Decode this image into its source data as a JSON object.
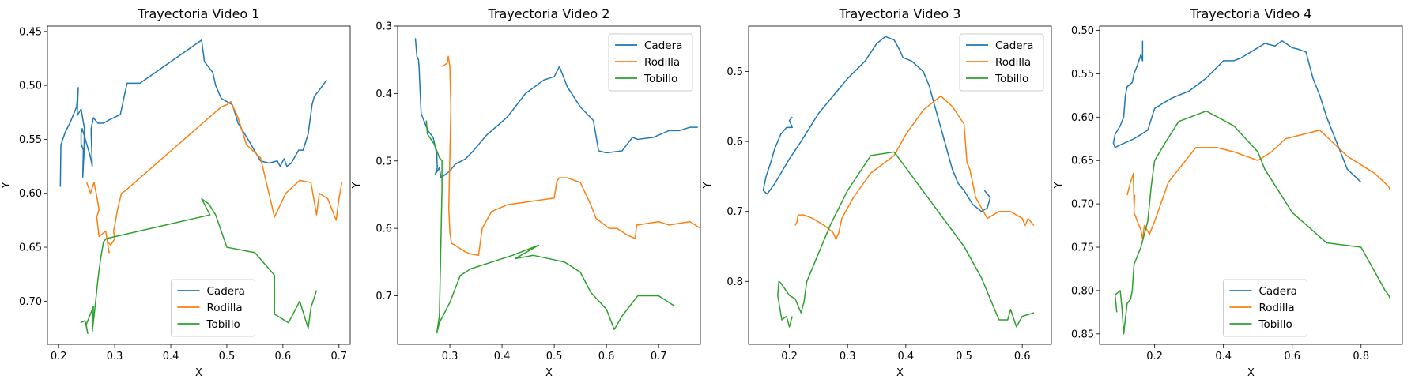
{
  "figure": {
    "background": "#ffffff",
    "colors": {
      "Cadera": "#1f77b4",
      "Rodilla": "#ff7f0e",
      "Tobillo": "#2ca02c"
    }
  },
  "chart_data": [
    {
      "type": "line",
      "title": "Trayectoria Video 1",
      "xlabel": "X",
      "ylabel": "Y",
      "xlim": [
        0.18,
        0.72
      ],
      "ylim": [
        0.74,
        0.445
      ],
      "y_inverted": true,
      "xticks": [
        0.2,
        0.3,
        0.4,
        0.5,
        0.6,
        0.7
      ],
      "yticks": [
        0.45,
        0.5,
        0.55,
        0.6,
        0.65,
        0.7
      ],
      "grid": false,
      "legend": "lower-center",
      "series": [
        {
          "name": "Cadera",
          "color": "#1f77b4",
          "x": [
            0.203,
            0.204,
            0.212,
            0.22,
            0.228,
            0.232,
            0.235,
            0.233,
            0.24,
            0.246,
            0.245,
            0.243,
            0.244,
            0.24,
            0.24,
            0.242,
            0.256,
            0.26,
            0.258,
            0.258,
            0.262,
            0.27,
            0.28,
            0.29,
            0.31,
            0.322,
            0.345,
            0.455,
            0.46,
            0.475,
            0.48,
            0.49,
            0.5,
            0.51,
            0.52,
            0.54,
            0.56,
            0.575,
            0.59,
            0.595,
            0.602,
            0.607,
            0.615,
            0.628,
            0.636,
            0.645,
            0.652,
            0.656,
            0.664,
            0.678
          ],
          "y": [
            0.594,
            0.555,
            0.543,
            0.535,
            0.525,
            0.52,
            0.502,
            0.528,
            0.522,
            0.54,
            0.565,
            0.585,
            0.56,
            0.554,
            0.545,
            0.54,
            0.565,
            0.575,
            0.545,
            0.54,
            0.53,
            0.535,
            0.535,
            0.532,
            0.527,
            0.498,
            0.498,
            0.458,
            0.478,
            0.488,
            0.5,
            0.512,
            0.515,
            0.518,
            0.535,
            0.552,
            0.57,
            0.572,
            0.57,
            0.575,
            0.568,
            0.575,
            0.572,
            0.56,
            0.56,
            0.545,
            0.518,
            0.51,
            0.505,
            0.495
          ]
        },
        {
          "name": "Rodilla",
          "color": "#ff7f0e",
          "x": [
            0.25,
            0.257,
            0.263,
            0.267,
            0.272,
            0.268,
            0.272,
            0.284,
            0.29,
            0.287,
            0.293,
            0.3,
            0.298,
            0.3,
            0.305,
            0.312,
            0.318,
            0.49,
            0.5,
            0.507,
            0.52,
            0.535,
            0.56,
            0.585,
            0.605,
            0.63,
            0.65,
            0.66,
            0.665,
            0.68,
            0.695,
            0.7,
            0.705
          ],
          "y": [
            0.59,
            0.6,
            0.59,
            0.6,
            0.615,
            0.622,
            0.64,
            0.635,
            0.655,
            0.645,
            0.648,
            0.642,
            0.635,
            0.63,
            0.615,
            0.6,
            0.598,
            0.52,
            0.518,
            0.515,
            0.53,
            0.555,
            0.567,
            0.622,
            0.6,
            0.588,
            0.59,
            0.62,
            0.6,
            0.605,
            0.625,
            0.605,
            0.59
          ]
        },
        {
          "name": "Tobillo",
          "color": "#2ca02c",
          "x": [
            0.239,
            0.247,
            0.252,
            0.249,
            0.262,
            0.26,
            0.265,
            0.27,
            0.275,
            0.28,
            0.285,
            0.47,
            0.455,
            0.468,
            0.48,
            0.5,
            0.55,
            0.585,
            0.585,
            0.61,
            0.63,
            0.645,
            0.65,
            0.66
          ],
          "y": [
            0.72,
            0.718,
            0.73,
            0.722,
            0.705,
            0.728,
            0.705,
            0.68,
            0.66,
            0.645,
            0.642,
            0.62,
            0.605,
            0.61,
            0.62,
            0.65,
            0.655,
            0.676,
            0.712,
            0.72,
            0.7,
            0.725,
            0.706,
            0.69
          ]
        }
      ]
    },
    {
      "type": "line",
      "title": "Trayectoria Video 2",
      "xlabel": "X",
      "ylabel": "Y",
      "xlim": [
        0.2,
        0.78
      ],
      "ylim": [
        0.772,
        0.3
      ],
      "y_inverted": true,
      "xticks": [
        0.3,
        0.4,
        0.5,
        0.6,
        0.7
      ],
      "yticks": [
        0.3,
        0.4,
        0.5,
        0.6,
        0.7
      ],
      "grid": false,
      "legend": "top-right",
      "series": [
        {
          "name": "Cadera",
          "color": "#1f77b4",
          "x": [
            0.234,
            0.237,
            0.24,
            0.241,
            0.245,
            0.258,
            0.268,
            0.275,
            0.276,
            0.272,
            0.28,
            0.283,
            0.3,
            0.31,
            0.33,
            0.345,
            0.37,
            0.41,
            0.445,
            0.48,
            0.5,
            0.51,
            0.515,
            0.525,
            0.55,
            0.575,
            0.585,
            0.6,
            0.63,
            0.65,
            0.66,
            0.69,
            0.72,
            0.74,
            0.76,
            0.775
          ],
          "y": [
            0.318,
            0.345,
            0.35,
            0.36,
            0.43,
            0.455,
            0.465,
            0.49,
            0.51,
            0.52,
            0.51,
            0.525,
            0.515,
            0.505,
            0.497,
            0.485,
            0.462,
            0.435,
            0.4,
            0.38,
            0.375,
            0.36,
            0.37,
            0.39,
            0.42,
            0.44,
            0.485,
            0.488,
            0.485,
            0.465,
            0.468,
            0.465,
            0.455,
            0.455,
            0.45,
            0.45
          ]
        },
        {
          "name": "Rodilla",
          "color": "#ff7f0e",
          "x": [
            0.285,
            0.295,
            0.297,
            0.3,
            0.302,
            0.298,
            0.3,
            0.303,
            0.31,
            0.32,
            0.33,
            0.34,
            0.355,
            0.362,
            0.38,
            0.41,
            0.5,
            0.505,
            0.51,
            0.525,
            0.55,
            0.57,
            0.58,
            0.605,
            0.62,
            0.64,
            0.655,
            0.658,
            0.66,
            0.7,
            0.72,
            0.76,
            0.78
          ],
          "y": [
            0.36,
            0.355,
            0.345,
            0.36,
            0.42,
            0.57,
            0.605,
            0.622,
            0.625,
            0.63,
            0.635,
            0.638,
            0.64,
            0.6,
            0.575,
            0.565,
            0.555,
            0.53,
            0.525,
            0.525,
            0.532,
            0.565,
            0.585,
            0.6,
            0.6,
            0.61,
            0.615,
            0.595,
            0.595,
            0.59,
            0.595,
            0.59,
            0.6
          ]
        },
        {
          "name": "Tobillo",
          "color": "#2ca02c",
          "x": [
            0.255,
            0.257,
            0.27,
            0.28,
            0.285,
            0.285,
            0.28,
            0.275,
            0.28,
            0.29,
            0.3,
            0.31,
            0.32,
            0.34,
            0.42,
            0.47,
            0.425,
            0.46,
            0.49,
            0.52,
            0.55,
            0.57,
            0.6,
            0.61,
            0.615,
            0.63,
            0.66,
            0.7,
            0.73
          ],
          "y": [
            0.44,
            0.46,
            0.475,
            0.495,
            0.5,
            0.54,
            0.73,
            0.755,
            0.74,
            0.725,
            0.71,
            0.69,
            0.67,
            0.66,
            0.64,
            0.625,
            0.645,
            0.64,
            0.645,
            0.65,
            0.665,
            0.695,
            0.72,
            0.74,
            0.75,
            0.73,
            0.7,
            0.7,
            0.715
          ]
        }
      ]
    },
    {
      "type": "line",
      "title": "Trayectoria Video 3",
      "xlabel": "X",
      "ylabel": "Y",
      "xlim": [
        0.13,
        0.65
      ],
      "ylim": [
        0.89,
        0.435
      ],
      "y_inverted": true,
      "xticks": [
        0.2,
        0.3,
        0.4,
        0.5,
        0.6
      ],
      "yticks": [
        0.5,
        0.6,
        0.7,
        0.8
      ],
      "grid": false,
      "legend": "top-right",
      "series": [
        {
          "name": "Cadera",
          "color": "#1f77b4",
          "x": [
            0.205,
            0.2,
            0.205,
            0.195,
            0.185,
            0.175,
            0.168,
            0.16,
            0.155,
            0.162,
            0.175,
            0.2,
            0.22,
            0.25,
            0.28,
            0.3,
            0.33,
            0.35,
            0.365,
            0.38,
            0.39,
            0.395,
            0.41,
            0.43,
            0.44,
            0.45,
            0.46,
            0.47,
            0.48,
            0.49,
            0.5,
            0.515,
            0.53,
            0.54,
            0.545,
            0.535
          ],
          "y": [
            0.565,
            0.57,
            0.58,
            0.58,
            0.59,
            0.61,
            0.63,
            0.65,
            0.67,
            0.675,
            0.66,
            0.625,
            0.6,
            0.56,
            0.53,
            0.51,
            0.485,
            0.46,
            0.45,
            0.455,
            0.47,
            0.48,
            0.485,
            0.5,
            0.52,
            0.55,
            0.58,
            0.61,
            0.64,
            0.66,
            0.67,
            0.69,
            0.7,
            0.695,
            0.68,
            0.67
          ]
        },
        {
          "name": "Rodilla",
          "color": "#ff7f0e",
          "x": [
            0.21,
            0.213,
            0.215,
            0.225,
            0.24,
            0.26,
            0.275,
            0.28,
            0.285,
            0.29,
            0.31,
            0.34,
            0.38,
            0.4,
            0.43,
            0.46,
            0.48,
            0.5,
            0.505,
            0.51,
            0.52,
            0.54,
            0.56,
            0.58,
            0.6,
            0.605,
            0.61,
            0.62
          ],
          "y": [
            0.72,
            0.715,
            0.705,
            0.705,
            0.71,
            0.72,
            0.73,
            0.74,
            0.73,
            0.71,
            0.68,
            0.645,
            0.62,
            0.59,
            0.555,
            0.535,
            0.55,
            0.575,
            0.63,
            0.64,
            0.68,
            0.71,
            0.7,
            0.7,
            0.71,
            0.72,
            0.71,
            0.72
          ]
        },
        {
          "name": "Tobillo",
          "color": "#2ca02c",
          "x": [
            0.205,
            0.2,
            0.195,
            0.187,
            0.18,
            0.182,
            0.185,
            0.2,
            0.21,
            0.22,
            0.225,
            0.23,
            0.27,
            0.3,
            0.34,
            0.38,
            0.42,
            0.46,
            0.5,
            0.53,
            0.56,
            0.575,
            0.58,
            0.59,
            0.6,
            0.62
          ],
          "y": [
            0.85,
            0.865,
            0.85,
            0.855,
            0.82,
            0.8,
            0.802,
            0.82,
            0.825,
            0.845,
            0.83,
            0.8,
            0.72,
            0.67,
            0.62,
            0.615,
            0.66,
            0.705,
            0.75,
            0.795,
            0.855,
            0.855,
            0.84,
            0.865,
            0.85,
            0.845
          ]
        }
      ]
    },
    {
      "type": "line",
      "title": "Trayectoria Video 4",
      "xlabel": "X",
      "ylabel": "Y",
      "xlim": [
        0.04,
        0.92
      ],
      "ylim": [
        0.862,
        0.495
      ],
      "y_inverted": true,
      "xticks": [
        0.2,
        0.4,
        0.6,
        0.8
      ],
      "yticks": [
        0.5,
        0.55,
        0.6,
        0.65,
        0.7,
        0.75,
        0.8,
        0.85
      ],
      "grid": false,
      "legend": "lower-center",
      "series": [
        {
          "name": "Cadera",
          "color": "#1f77b4",
          "x": [
            0.165,
            0.165,
            0.16,
            0.15,
            0.14,
            0.135,
            0.12,
            0.115,
            0.11,
            0.1,
            0.085,
            0.08,
            0.085,
            0.1,
            0.14,
            0.18,
            0.2,
            0.22,
            0.25,
            0.3,
            0.35,
            0.4,
            0.43,
            0.45,
            0.5,
            0.52,
            0.55,
            0.57,
            0.6,
            0.62,
            0.64,
            0.65,
            0.66,
            0.68,
            0.7,
            0.72,
            0.74,
            0.76,
            0.8
          ],
          "y": [
            0.512,
            0.535,
            0.528,
            0.54,
            0.55,
            0.56,
            0.565,
            0.575,
            0.6,
            0.61,
            0.62,
            0.63,
            0.635,
            0.632,
            0.625,
            0.615,
            0.59,
            0.585,
            0.578,
            0.57,
            0.555,
            0.535,
            0.535,
            0.532,
            0.52,
            0.515,
            0.518,
            0.512,
            0.52,
            0.522,
            0.525,
            0.54,
            0.555,
            0.575,
            0.6,
            0.62,
            0.64,
            0.66,
            0.675
          ]
        },
        {
          "name": "Rodilla",
          "color": "#ff7f0e",
          "x": [
            0.12,
            0.13,
            0.138,
            0.14,
            0.142,
            0.14,
            0.145,
            0.16,
            0.165,
            0.17,
            0.185,
            0.2,
            0.24,
            0.32,
            0.38,
            0.43,
            0.5,
            0.54,
            0.58,
            0.63,
            0.68,
            0.72,
            0.76,
            0.8,
            0.84,
            0.88,
            0.885
          ],
          "y": [
            0.69,
            0.675,
            0.665,
            0.7,
            0.69,
            0.71,
            0.715,
            0.73,
            0.74,
            0.725,
            0.735,
            0.72,
            0.675,
            0.635,
            0.635,
            0.64,
            0.65,
            0.64,
            0.625,
            0.62,
            0.615,
            0.63,
            0.645,
            0.655,
            0.665,
            0.68,
            0.685
          ]
        },
        {
          "name": "Tobillo",
          "color": "#2ca02c",
          "x": [
            0.09,
            0.085,
            0.1,
            0.105,
            0.11,
            0.12,
            0.13,
            0.135,
            0.14,
            0.16,
            0.18,
            0.19,
            0.2,
            0.23,
            0.27,
            0.35,
            0.43,
            0.5,
            0.52,
            0.6,
            0.7,
            0.8,
            0.87,
            0.88,
            0.885
          ],
          "y": [
            0.825,
            0.805,
            0.8,
            0.82,
            0.85,
            0.815,
            0.81,
            0.8,
            0.77,
            0.75,
            0.72,
            0.68,
            0.65,
            0.63,
            0.605,
            0.593,
            0.61,
            0.64,
            0.66,
            0.71,
            0.745,
            0.75,
            0.8,
            0.805,
            0.81
          ]
        }
      ]
    }
  ]
}
